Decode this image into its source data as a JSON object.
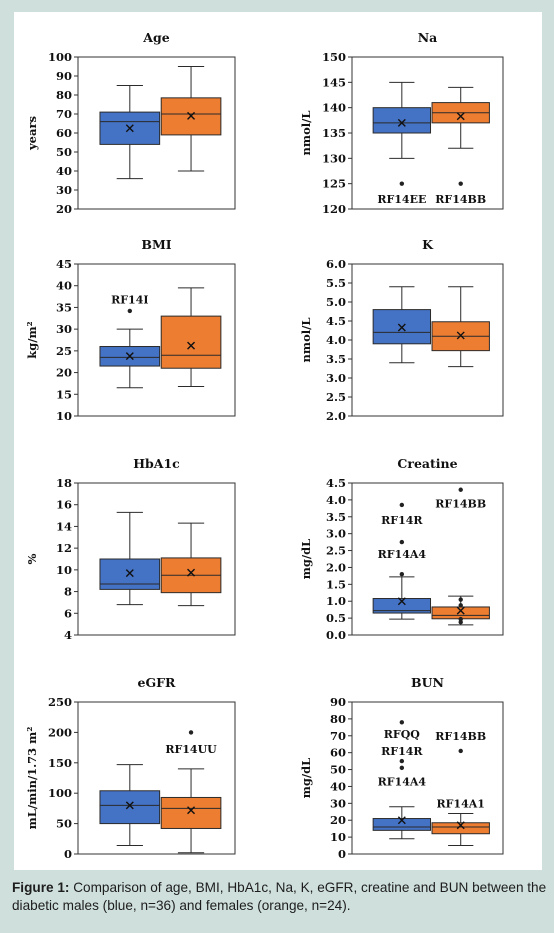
{
  "caption": {
    "label": "Figure 1:",
    "text": "Comparison of age, BMI, HbA1c, Na, K, eGFR, creatine and BUN between the diabetic males (blue, n=36) and females (orange, n=24)."
  },
  "colors": {
    "male": "#4472c4",
    "female": "#ed7d31",
    "edge": "#2b2b2b"
  },
  "chart_data": [
    {
      "type": "box",
      "title": "Age",
      "ylabel": "years",
      "ylim": [
        20,
        100
      ],
      "yticks": [
        20,
        30,
        40,
        50,
        60,
        70,
        80,
        90,
        100
      ],
      "series": [
        {
          "group": "male",
          "min": 36,
          "q1": 54,
          "median": 66,
          "q3": 71,
          "max": 85,
          "mean": 62.5,
          "outliers": []
        },
        {
          "group": "female",
          "min": 40,
          "q1": 59,
          "median": 70,
          "q3": 78.5,
          "max": 95,
          "mean": 69,
          "outliers": []
        }
      ],
      "annotations": []
    },
    {
      "type": "box",
      "title": "Na",
      "ylabel": "nmol/L",
      "ylim": [
        120,
        150
      ],
      "yticks": [
        120,
        125,
        130,
        135,
        140,
        145,
        150
      ],
      "series": [
        {
          "group": "male",
          "min": 130,
          "q1": 135,
          "median": 137,
          "q3": 140,
          "max": 145,
          "mean": 137,
          "outliers": [
            125
          ]
        },
        {
          "group": "female",
          "min": 132,
          "q1": 137,
          "median": 139,
          "q3": 141,
          "max": 144,
          "mean": 138.3,
          "outliers": [
            125
          ]
        }
      ],
      "annotations": [
        {
          "text": "RF14EE",
          "group": "male",
          "y": 122
        },
        {
          "text": "RF14BB",
          "group": "female",
          "y": 122
        }
      ]
    },
    {
      "type": "box",
      "title": "BMI",
      "ylabel": "kg/m²",
      "ylim": [
        10,
        45
      ],
      "yticks": [
        10,
        15,
        20,
        25,
        30,
        35,
        40,
        45
      ],
      "series": [
        {
          "group": "male",
          "min": 16.5,
          "q1": 21.5,
          "median": 23.5,
          "q3": 26,
          "max": 30,
          "mean": 23.8,
          "outliers": [
            34.2
          ]
        },
        {
          "group": "female",
          "min": 16.8,
          "q1": 21,
          "median": 24,
          "q3": 33,
          "max": 39.5,
          "mean": 26.2,
          "outliers": []
        }
      ],
      "annotations": [
        {
          "text": "RF14I",
          "group": "male",
          "y": 36.8
        }
      ]
    },
    {
      "type": "box",
      "title": "K",
      "ylabel": "nmol/L",
      "ylim": [
        2.0,
        6.0
      ],
      "yticks": [
        2.0,
        2.5,
        3.0,
        3.5,
        4.0,
        4.5,
        5.0,
        5.5,
        6.0
      ],
      "series": [
        {
          "group": "male",
          "min": 3.4,
          "q1": 3.9,
          "median": 4.2,
          "q3": 4.8,
          "max": 5.4,
          "mean": 4.33,
          "outliers": []
        },
        {
          "group": "female",
          "min": 3.3,
          "q1": 3.72,
          "median": 4.1,
          "q3": 4.48,
          "max": 5.4,
          "mean": 4.12,
          "outliers": []
        }
      ],
      "annotations": []
    },
    {
      "type": "box",
      "title": "HbA1c",
      "ylabel": "%",
      "ylim": [
        4,
        18
      ],
      "yticks": [
        4,
        6,
        8,
        10,
        12,
        14,
        16,
        18
      ],
      "series": [
        {
          "group": "male",
          "min": 6.8,
          "q1": 8.2,
          "median": 8.7,
          "q3": 11,
          "max": 15.3,
          "mean": 9.7,
          "outliers": []
        },
        {
          "group": "female",
          "min": 6.7,
          "q1": 7.9,
          "median": 9.5,
          "q3": 11.1,
          "max": 14.3,
          "mean": 9.75,
          "outliers": []
        }
      ],
      "annotations": []
    },
    {
      "type": "box",
      "title": "Creatine",
      "ylabel": "mg/dL",
      "ylim": [
        0,
        4.5
      ],
      "yticks": [
        0.0,
        0.5,
        1.0,
        1.5,
        2.0,
        2.5,
        3.0,
        3.5,
        4.0,
        4.5
      ],
      "series": [
        {
          "group": "male",
          "min": 0.47,
          "q1": 0.65,
          "median": 0.72,
          "q3": 1.08,
          "max": 1.72,
          "mean": 1.0,
          "outliers": [
            1.8,
            2.75,
            3.85
          ]
        },
        {
          "group": "female",
          "min": 0.3,
          "q1": 0.48,
          "median": 0.58,
          "q3": 0.83,
          "max": 1.15,
          "mean": 0.72,
          "outliers": [
            0.38,
            0.47,
            0.88,
            1.05,
            4.3
          ]
        }
      ],
      "annotations": [
        {
          "text": "RF14R",
          "group": "male",
          "y": 3.4
        },
        {
          "text": "RF14A4",
          "group": "male",
          "y": 2.4
        },
        {
          "text": "RF14BB",
          "group": "female",
          "y": 3.9
        }
      ]
    },
    {
      "type": "box",
      "title": "eGFR",
      "ylabel": "mL/min/1.73 m²",
      "ylim": [
        0,
        250
      ],
      "yticks": [
        0,
        50,
        100,
        150,
        200,
        250
      ],
      "series": [
        {
          "group": "male",
          "min": 14,
          "q1": 50,
          "median": 80,
          "q3": 104,
          "max": 147,
          "mean": 80,
          "outliers": []
        },
        {
          "group": "female",
          "min": 2,
          "q1": 42,
          "median": 75,
          "q3": 93,
          "max": 140,
          "mean": 72,
          "outliers": [
            200
          ]
        }
      ],
      "annotations": [
        {
          "text": "RF14UU",
          "group": "female",
          "y": 173
        }
      ]
    },
    {
      "type": "box",
      "title": "BUN",
      "ylabel": "mg/dL",
      "ylim": [
        0,
        90
      ],
      "yticks": [
        0,
        10,
        20,
        30,
        40,
        50,
        60,
        70,
        80,
        90
      ],
      "series": [
        {
          "group": "male",
          "min": 9,
          "q1": 14,
          "median": 16,
          "q3": 21,
          "max": 28,
          "mean": 20,
          "outliers": [
            51,
            55,
            78
          ]
        },
        {
          "group": "female",
          "min": 5,
          "q1": 12,
          "median": 16,
          "q3": 18.5,
          "max": 24,
          "mean": 17,
          "outliers": [
            61
          ]
        }
      ],
      "annotations": [
        {
          "text": "RFQQ",
          "group": "male",
          "y": 71
        },
        {
          "text": "RF14R",
          "group": "male",
          "y": 61
        },
        {
          "text": "RF14A4",
          "group": "male",
          "y": 43
        },
        {
          "text": "RF14BB",
          "group": "female",
          "y": 70
        },
        {
          "text": "RF14A1",
          "group": "female",
          "y": 30
        }
      ]
    }
  ]
}
